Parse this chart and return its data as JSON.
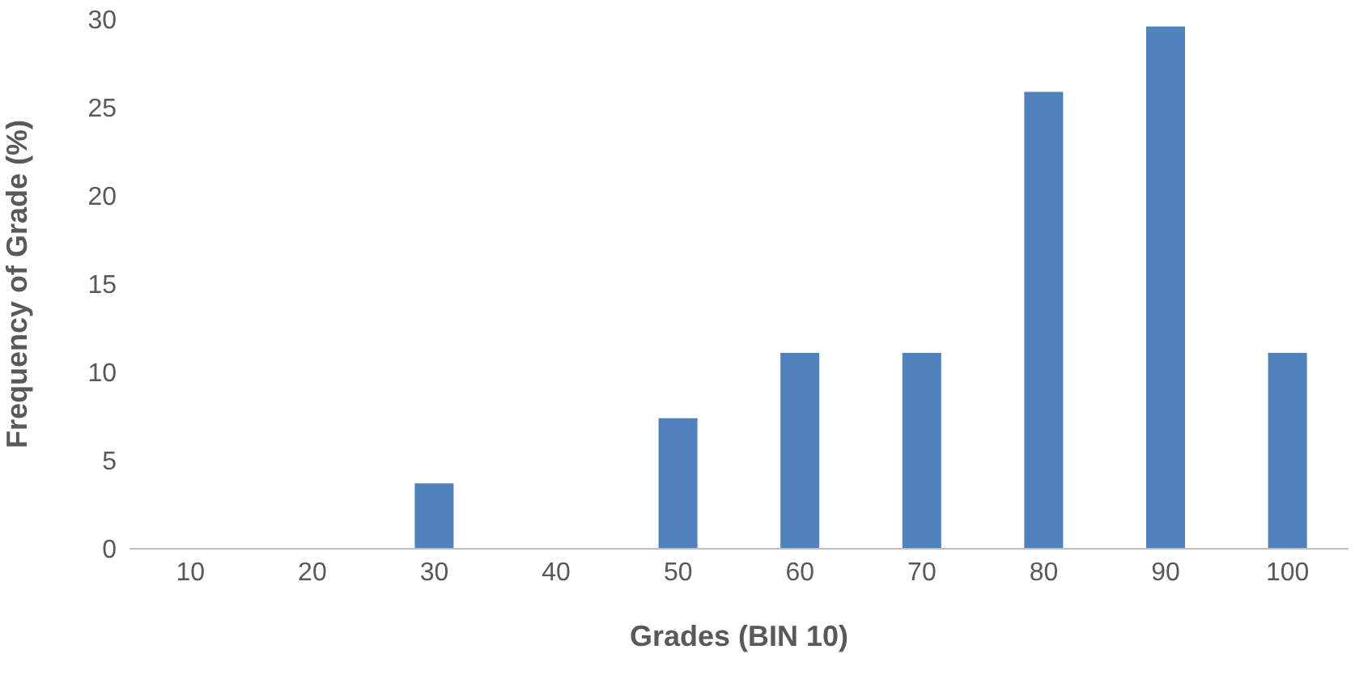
{
  "chart_data": {
    "type": "bar",
    "xlabel": "Grades (BIN 10)",
    "ylabel": "Frequency of Grade (%)",
    "categories": [
      "10",
      "20",
      "30",
      "40",
      "50",
      "60",
      "70",
      "80",
      "90",
      "100"
    ],
    "values": [
      0,
      0,
      3.7,
      0,
      7.4,
      11.1,
      11.1,
      25.9,
      29.6,
      11.1
    ],
    "color": "#4f81bd",
    "ylim": [
      0,
      30
    ],
    "yticks": [
      0,
      5,
      10,
      15,
      20,
      25,
      30
    ],
    "grid": false,
    "legend": false
  }
}
